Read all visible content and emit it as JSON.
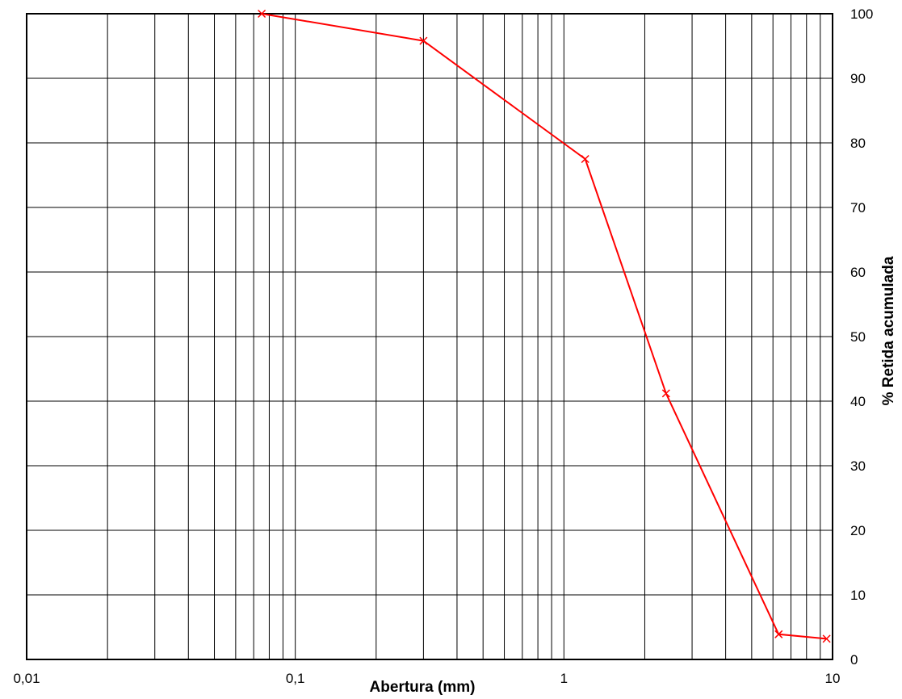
{
  "chart_data": {
    "type": "line",
    "title": "",
    "xlabel": "Abertura (mm)",
    "ylabel": "% Retida acumulada",
    "x_scale": "log",
    "xlim": [
      0.01,
      10
    ],
    "ylim": [
      0,
      100
    ],
    "grid": true,
    "legend": "none",
    "x_tick_labels": [
      {
        "value": 0.01,
        "label": "0,01"
      },
      {
        "value": 0.1,
        "label": "0,1"
      },
      {
        "value": 1,
        "label": "1"
      },
      {
        "value": 10,
        "label": "10"
      }
    ],
    "y_ticks": [
      0,
      10,
      20,
      30,
      40,
      50,
      60,
      70,
      80,
      90,
      100
    ],
    "series": [
      {
        "color": "#ff0000",
        "marker": "x",
        "x": [
          0.075,
          0.3,
          1.2,
          2.4,
          6.3,
          9.5
        ],
        "y": [
          100,
          95.8,
          77.5,
          41.2,
          3.9,
          3.2
        ]
      }
    ]
  }
}
